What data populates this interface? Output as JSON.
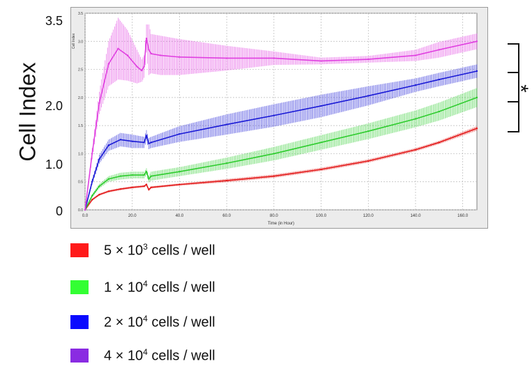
{
  "chart_data": {
    "type": "line",
    "xlabel": "Time (in Hour)",
    "ylabel": "Cell Index",
    "inner_ylabel": "Cell Index",
    "xlim": [
      0,
      166
    ],
    "ylim": [
      0,
      3.5
    ],
    "x_ticks": [
      "0.0",
      "20.0",
      "40.0",
      "60.0",
      "80.0",
      "100.0",
      "120.0",
      "140.0",
      "160.0"
    ],
    "x_tick_values": [
      0,
      20,
      40,
      60,
      80,
      100,
      120,
      140,
      160
    ],
    "inner_y_ticks": [
      "0.0",
      "0.5",
      "1.0",
      "1.5",
      "2.0",
      "2.5",
      "3.0",
      "3.5"
    ],
    "inner_y_tick_values": [
      0,
      0.5,
      1.0,
      1.5,
      2.0,
      2.5,
      3.0,
      3.5
    ],
    "outer_y_ticks": [
      "0",
      "1.0",
      "2.0",
      "3.5"
    ],
    "outer_y_tick_values": [
      0,
      1.0,
      2.0,
      3.5
    ],
    "grid": true,
    "annotation": "*",
    "series": [
      {
        "color": "#e31b1b",
        "x": [
          0,
          3,
          6,
          10,
          15,
          20,
          25,
          26,
          27,
          28,
          40,
          60,
          80,
          100,
          120,
          140,
          150,
          166
        ],
        "y": [
          0,
          0.18,
          0.27,
          0.33,
          0.37,
          0.4,
          0.42,
          0.45,
          0.36,
          0.4,
          0.45,
          0.52,
          0.6,
          0.72,
          0.87,
          1.07,
          1.2,
          1.45
        ],
        "err": [
          0,
          0.02,
          0.02,
          0.02,
          0.02,
          0.02,
          0.02,
          0.02,
          0.02,
          0.02,
          0.02,
          0.03,
          0.03,
          0.03,
          0.03,
          0.03,
          0.03,
          0.04
        ]
      },
      {
        "color": "#2ecc2e",
        "x": [
          0,
          3,
          6,
          10,
          15,
          20,
          25,
          26,
          27,
          28,
          40,
          60,
          80,
          100,
          120,
          140,
          150,
          166
        ],
        "y": [
          0,
          0.25,
          0.42,
          0.55,
          0.6,
          0.62,
          0.62,
          0.68,
          0.55,
          0.6,
          0.68,
          0.83,
          1.0,
          1.2,
          1.4,
          1.62,
          1.75,
          2.0
        ],
        "err": [
          0,
          0.03,
          0.04,
          0.05,
          0.06,
          0.06,
          0.06,
          0.06,
          0.06,
          0.08,
          0.08,
          0.1,
          0.12,
          0.13,
          0.14,
          0.15,
          0.16,
          0.17
        ]
      },
      {
        "color": "#1a1ad6",
        "x": [
          0,
          3,
          6,
          10,
          15,
          20,
          25,
          26,
          27,
          28,
          40,
          60,
          80,
          100,
          120,
          140,
          150,
          166
        ],
        "y": [
          0,
          0.5,
          0.9,
          1.15,
          1.25,
          1.22,
          1.2,
          1.32,
          1.18,
          1.2,
          1.35,
          1.52,
          1.68,
          1.85,
          2.03,
          2.22,
          2.32,
          2.47
        ],
        "err": [
          0,
          0.05,
          0.08,
          0.1,
          0.12,
          0.12,
          0.1,
          0.1,
          0.1,
          0.1,
          0.14,
          0.18,
          0.2,
          0.2,
          0.17,
          0.12,
          0.12,
          0.12
        ]
      },
      {
        "color": "#e040e0",
        "x": [
          0,
          3,
          6,
          10,
          14,
          18,
          22,
          24,
          25,
          26,
          27,
          28,
          32,
          40,
          60,
          80,
          100,
          120,
          140,
          150,
          166
        ],
        "y": [
          0,
          1.0,
          1.9,
          2.6,
          2.87,
          2.75,
          2.55,
          2.48,
          2.55,
          3.05,
          2.85,
          2.78,
          2.75,
          2.72,
          2.7,
          2.7,
          2.65,
          2.68,
          2.75,
          2.85,
          3.0
        ],
        "err": [
          0,
          0.1,
          0.2,
          0.4,
          0.55,
          0.45,
          0.3,
          0.2,
          0.2,
          0.25,
          0.45,
          0.35,
          0.35,
          0.32,
          0.22,
          0.12,
          0.06,
          0.06,
          0.1,
          0.14,
          0.14
        ]
      }
    ]
  },
  "legend": [
    {
      "color": "#ff1a1a",
      "prefix": "5 × 10",
      "exp": "3",
      "suffix": " cells / well"
    },
    {
      "color": "#33ff33",
      "prefix": "1 × 10",
      "exp": "4",
      "suffix": " cells / well"
    },
    {
      "color": "#0a0aff",
      "prefix": "2 × 10",
      "exp": "4",
      "suffix": " cells / well"
    },
    {
      "color": "#8a2be2",
      "prefix": "4 × 10",
      "exp": "4",
      "suffix": " cells / well"
    }
  ]
}
